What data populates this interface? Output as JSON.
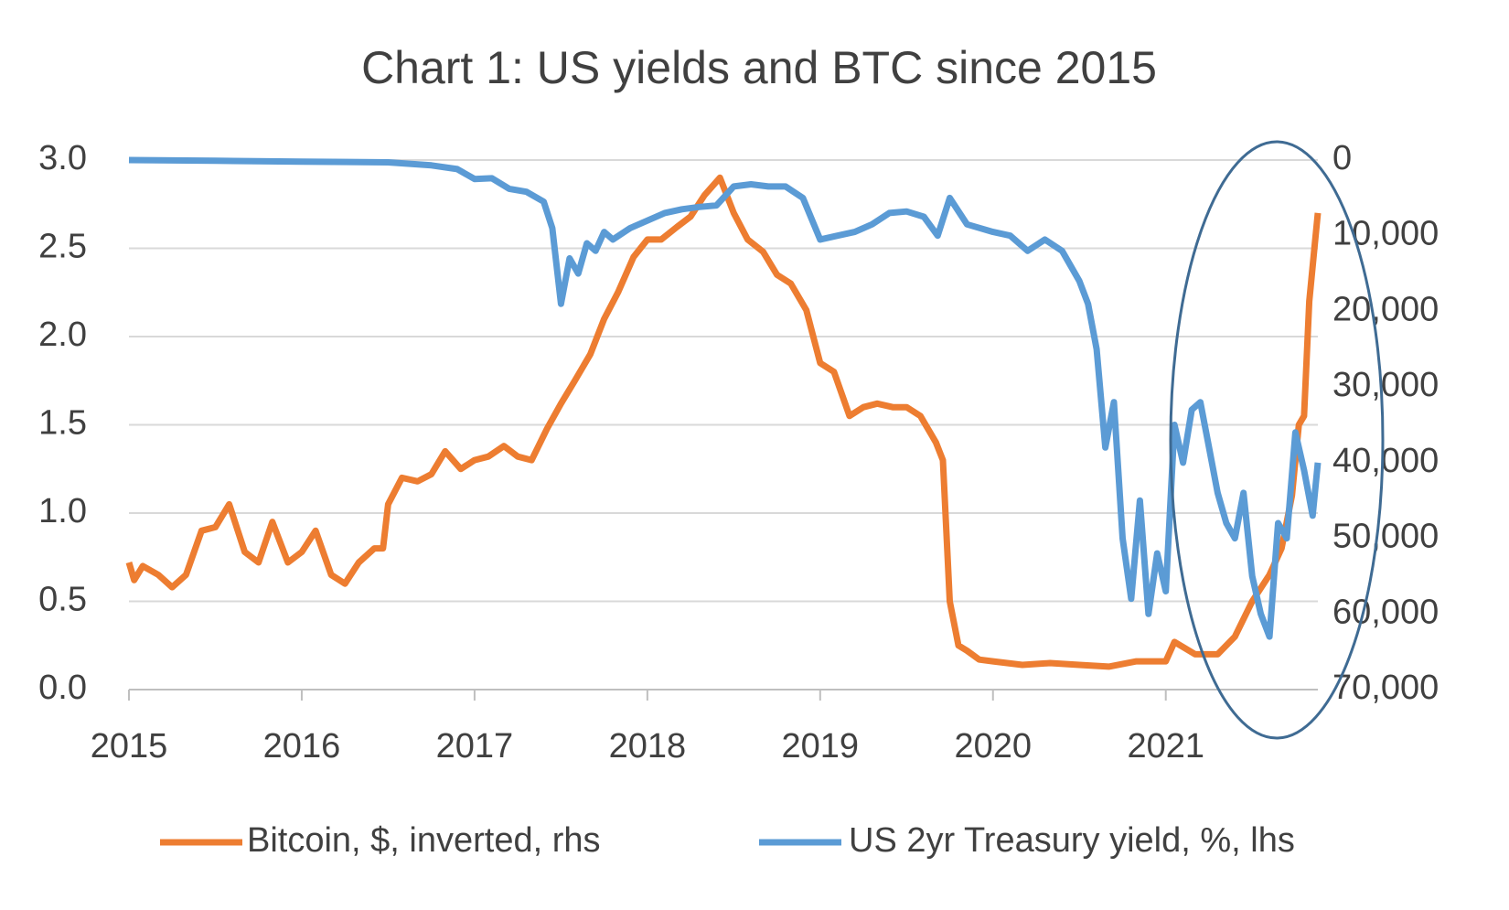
{
  "chart_data": {
    "type": "line",
    "title": "Chart 1: US yields and BTC since 2015",
    "xlim": [
      2015,
      2021.88
    ],
    "xticks": [
      2015,
      2016,
      2017,
      2018,
      2019,
      2020,
      2021
    ],
    "ylim": [
      0,
      3
    ],
    "yticks": [
      {
        "value": 0,
        "label": "0.0"
      },
      {
        "value": 0.5,
        "label": "0.5"
      },
      {
        "value": 1,
        "label": "1.0"
      },
      {
        "value": 1.5,
        "label": "1.5"
      },
      {
        "value": 2,
        "label": "2.0"
      },
      {
        "value": 2.5,
        "label": "2.5"
      },
      {
        "value": 3,
        "label": "3.0"
      }
    ],
    "y2lim": [
      0,
      70000
    ],
    "y2_inverted": true,
    "y2ticks": [
      0,
      {
        "value": 10000,
        "label": "10,000"
      },
      {
        "value": 20000,
        "label": "20,000"
      },
      {
        "value": 30000,
        "label": "30,000"
      },
      {
        "value": 40000,
        "label": "40,000"
      },
      {
        "value": 50000,
        "label": "50,000"
      },
      {
        "value": 60000,
        "label": "60,000"
      },
      {
        "value": 70000,
        "label": "70,000"
      }
    ],
    "grid": true,
    "legend": "bottom",
    "series": [
      {
        "name": "Bitcoin, $, inverted, rhs",
        "color": "#ed7d31",
        "axis": "y",
        "x": [
          2015.0,
          2015.03,
          2015.08,
          2015.17,
          2015.25,
          2015.33,
          2015.42,
          2015.5,
          2015.58,
          2015.67,
          2015.75,
          2015.83,
          2015.92,
          2016.0,
          2016.08,
          2016.17,
          2016.25,
          2016.33,
          2016.42,
          2016.47,
          2016.5,
          2016.58,
          2016.67,
          2016.75,
          2016.83,
          2016.92,
          2017.0,
          2017.08,
          2017.17,
          2017.25,
          2017.33,
          2017.42,
          2017.5,
          2017.58,
          2017.67,
          2017.75,
          2017.83,
          2017.92,
          2018.0,
          2018.08,
          2018.17,
          2018.25,
          2018.33,
          2018.42,
          2018.5,
          2018.58,
          2018.67,
          2018.75,
          2018.83,
          2018.92,
          2019.0,
          2019.08,
          2019.17,
          2019.25,
          2019.33,
          2019.42,
          2019.5,
          2019.58,
          2019.67,
          2019.71,
          2019.75,
          2019.8,
          2019.85,
          2019.92,
          2020.0,
          2020.17,
          2020.33,
          2020.5,
          2020.67,
          2020.83,
          2021.0,
          2021.05,
          2021.17,
          2021.3,
          2021.4,
          2021.5,
          2021.6,
          2021.67,
          2021.73,
          2021.77,
          2021.8,
          2021.83,
          2021.86,
          2021.88
        ],
        "values": [
          0.72,
          0.62,
          0.7,
          0.65,
          0.58,
          0.65,
          0.9,
          0.92,
          1.05,
          0.78,
          0.72,
          0.95,
          0.72,
          0.78,
          0.9,
          0.65,
          0.6,
          0.72,
          0.8,
          0.8,
          1.05,
          1.2,
          1.18,
          1.22,
          1.35,
          1.25,
          1.3,
          1.32,
          1.38,
          1.32,
          1.3,
          1.48,
          1.62,
          1.75,
          1.9,
          2.1,
          2.25,
          2.45,
          2.55,
          2.55,
          2.62,
          2.68,
          2.8,
          2.9,
          2.7,
          2.55,
          2.48,
          2.35,
          2.3,
          2.15,
          1.85,
          1.8,
          1.55,
          1.6,
          1.62,
          1.6,
          1.6,
          1.55,
          1.4,
          1.3,
          0.5,
          0.25,
          0.22,
          0.17,
          0.16,
          0.14,
          0.15,
          0.14,
          0.13,
          0.16,
          0.16,
          0.27,
          0.2,
          0.2,
          0.3,
          0.5,
          0.65,
          0.8,
          1.1,
          1.5,
          1.55,
          2.2,
          2.5,
          2.7
        ]
      },
      {
        "name": "US 2yr Treasury yield, %, lhs",
        "color": "#5b9bd5",
        "axis": "y2",
        "x": [
          2015.0,
          2015.5,
          2016.0,
          2016.5,
          2016.75,
          2016.9,
          2017.0,
          2017.1,
          2017.2,
          2017.3,
          2017.4,
          2017.45,
          2017.5,
          2017.55,
          2017.6,
          2017.65,
          2017.7,
          2017.75,
          2017.8,
          2017.9,
          2018.0,
          2018.1,
          2018.2,
          2018.3,
          2018.4,
          2018.5,
          2018.6,
          2018.7,
          2018.8,
          2018.9,
          2019.0,
          2019.1,
          2019.2,
          2019.3,
          2019.4,
          2019.5,
          2019.6,
          2019.68,
          2019.75,
          2019.85,
          2020.0,
          2020.1,
          2020.2,
          2020.3,
          2020.4,
          2020.5,
          2020.55,
          2020.6,
          2020.65,
          2020.7,
          2020.75,
          2020.8,
          2020.85,
          2020.9,
          2020.95,
          2021.0,
          2021.05,
          2021.1,
          2021.15,
          2021.2,
          2021.25,
          2021.3,
          2021.35,
          2021.4,
          2021.45,
          2021.5,
          2021.55,
          2021.6,
          2021.65,
          2021.7,
          2021.75,
          2021.8,
          2021.85,
          2021.88
        ],
        "values": [
          0,
          100,
          200,
          300,
          700,
          1200,
          2500,
          2400,
          3800,
          4200,
          5500,
          9000,
          19000,
          13000,
          15000,
          11000,
          12000,
          9500,
          10500,
          9000,
          8000,
          7000,
          6500,
          6200,
          6000,
          3500,
          3200,
          3500,
          3500,
          5000,
          10500,
          10000,
          9500,
          8500,
          7000,
          6800,
          7500,
          10000,
          5000,
          8500,
          9500,
          10000,
          12000,
          10500,
          12000,
          16000,
          19000,
          25000,
          38000,
          32000,
          50000,
          58000,
          45000,
          60000,
          52000,
          57000,
          35000,
          40000,
          33000,
          32000,
          38000,
          44000,
          48000,
          50000,
          44000,
          55000,
          60000,
          63000,
          48000,
          50000,
          36000,
          41000,
          47000,
          40000
        ]
      }
    ]
  }
}
